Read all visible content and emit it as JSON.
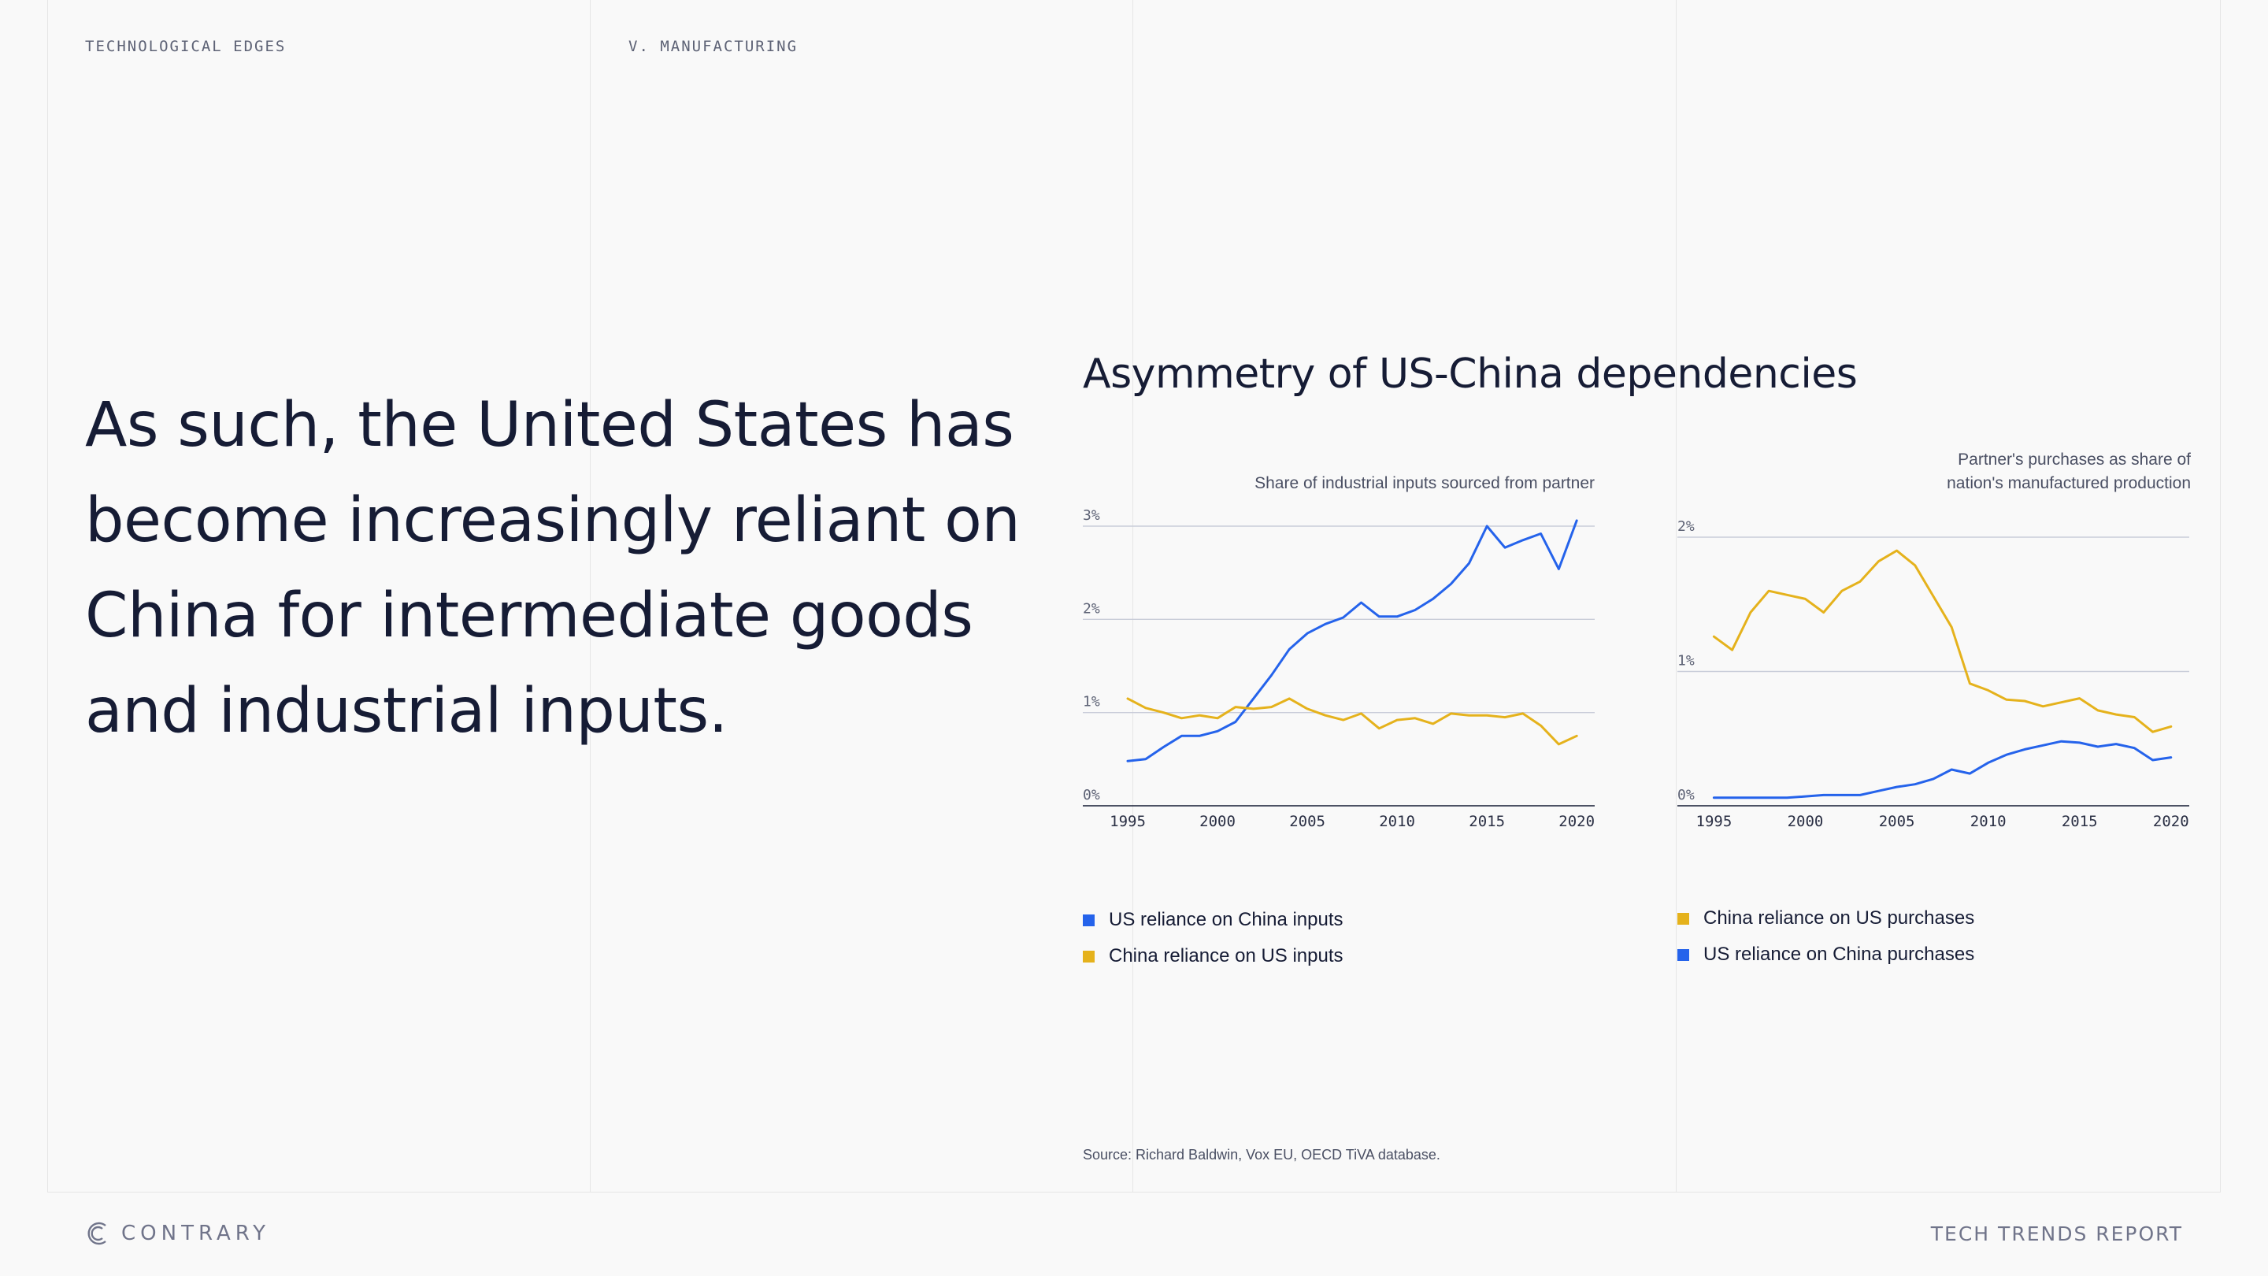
{
  "header": {
    "section_left": "TECHNOLOGICAL EDGES",
    "section_right": "V. MANUFACTURING"
  },
  "headline": "As such, the United States has become increasingly reliant on China for intermediate goods and industrial inputs.",
  "figure_title": "Asymmetry of US-China dependencies",
  "source": "Source: Richard Baldwin, Vox EU, OECD TiVA database.",
  "footer": {
    "brand": "CONTRARY",
    "report": "TECH TRENDS REPORT"
  },
  "colors": {
    "blue": "#2563eb",
    "yellow": "#e5b21c",
    "grid": "#c9cdd9",
    "axis": "#141a33"
  },
  "chart_data": [
    {
      "type": "line",
      "title": "Share of industrial inputs sourced from partner",
      "x": [
        1995,
        1996,
        1997,
        1998,
        1999,
        2000,
        2001,
        2002,
        2003,
        2004,
        2005,
        2006,
        2007,
        2008,
        2009,
        2010,
        2011,
        2012,
        2013,
        2014,
        2015,
        2016,
        2017,
        2018,
        2019,
        2020
      ],
      "xticks": [
        1995,
        2000,
        2005,
        2010,
        2015,
        2020
      ],
      "xlim": [
        1992.5,
        2021
      ],
      "yticks": [
        0,
        1,
        2,
        3
      ],
      "ytick_labels": [
        "0%",
        "1%",
        "2%",
        "3%"
      ],
      "ylim": [
        0,
        3
      ],
      "grid": true,
      "series": [
        {
          "name": "US reliance on China inputs",
          "color": "#2563eb",
          "values": [
            0.48,
            0.5,
            0.63,
            0.75,
            0.75,
            0.8,
            0.9,
            1.15,
            1.4,
            1.68,
            1.85,
            1.95,
            2.02,
            2.18,
            2.03,
            2.03,
            2.1,
            2.22,
            2.38,
            2.6,
            3.0,
            2.77,
            2.85,
            2.92,
            2.54,
            3.06
          ]
        },
        {
          "name": "China reliance on US inputs",
          "color": "#e5b21c",
          "values": [
            1.15,
            1.05,
            1.0,
            0.94,
            0.97,
            0.94,
            1.06,
            1.04,
            1.06,
            1.15,
            1.04,
            0.97,
            0.92,
            0.99,
            0.83,
            0.92,
            0.94,
            0.88,
            0.99,
            0.97,
            0.97,
            0.95,
            0.99,
            0.86,
            0.66,
            0.75
          ]
        }
      ],
      "legend_order": [
        "US reliance on China inputs",
        "China reliance on US inputs"
      ]
    },
    {
      "type": "line",
      "title": "Partner's purchases as share of nation's manufactured production",
      "x": [
        1995,
        1996,
        1997,
        1998,
        1999,
        2000,
        2001,
        2002,
        2003,
        2004,
        2005,
        2006,
        2007,
        2008,
        2009,
        2010,
        2011,
        2012,
        2013,
        2014,
        2015,
        2016,
        2017,
        2018,
        2019,
        2020
      ],
      "xticks": [
        1995,
        2000,
        2005,
        2010,
        2015,
        2020
      ],
      "xlim": [
        1993,
        2021
      ],
      "yticks": [
        0,
        1,
        2
      ],
      "ytick_labels": [
        "0%",
        "1%",
        "2%"
      ],
      "ylim": [
        0,
        2
      ],
      "grid": true,
      "series": [
        {
          "name": "China reliance on US purchases",
          "color": "#e5b21c",
          "values": [
            1.26,
            1.16,
            1.44,
            1.6,
            1.57,
            1.54,
            1.44,
            1.6,
            1.67,
            1.82,
            1.9,
            1.79,
            1.56,
            1.33,
            0.91,
            0.86,
            0.79,
            0.78,
            0.74,
            0.77,
            0.8,
            0.71,
            0.68,
            0.66,
            0.55,
            0.59
          ]
        },
        {
          "name": "US reliance on China purchases",
          "color": "#2563eb",
          "values": [
            0.06,
            0.06,
            0.06,
            0.06,
            0.06,
            0.07,
            0.08,
            0.08,
            0.08,
            0.11,
            0.14,
            0.16,
            0.2,
            0.27,
            0.24,
            0.32,
            0.38,
            0.42,
            0.45,
            0.48,
            0.47,
            0.44,
            0.46,
            0.43,
            0.34,
            0.36
          ]
        }
      ],
      "legend_order": [
        "China reliance on US purchases",
        "US reliance on China purchases"
      ]
    }
  ]
}
